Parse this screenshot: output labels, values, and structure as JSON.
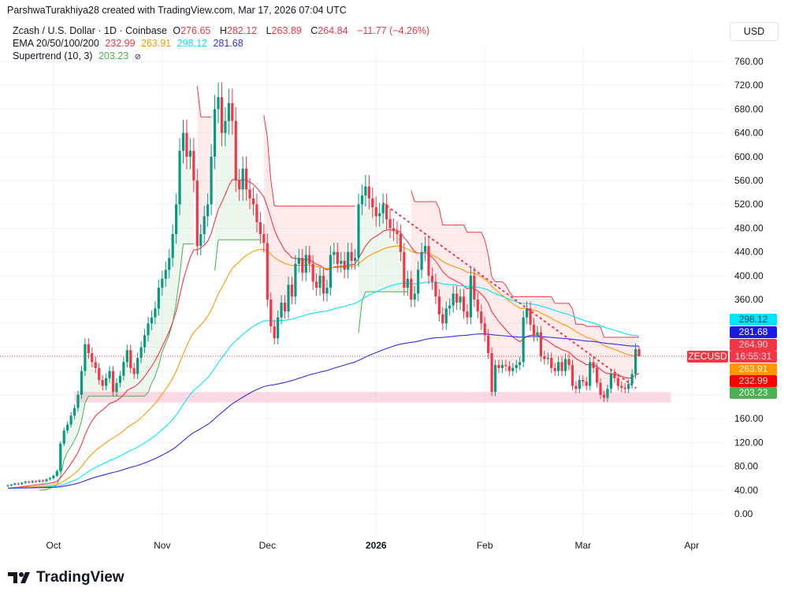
{
  "credit": "ParshwaTurakhiya28 created with TradingView.com, Mar 17, 2026 07:04 UTC",
  "legend": {
    "symbol": "Zcash / U.S. Dollar · 1D · Coinbase",
    "o_label": "O",
    "o": "276.65",
    "h_label": "H",
    "h": "282.12",
    "l_label": "L",
    "l": "263.89",
    "c_label": "C",
    "c": "264.84",
    "change": "−11.77 (−4.26%)",
    "ema_label": "EMA 20/50/100/200",
    "ema20": "232.99",
    "ema50": "263.91",
    "ema100": "298.12",
    "ema200": "281.68",
    "supertrend_label": "Supertrend (10, 3)",
    "supertrend": "203.23",
    "visibility_icon": "eye-off-icon"
  },
  "currency_button": "USD",
  "price_tags": {
    "ema100": "298.12",
    "ema200": "281.68",
    "last_price": "264.90",
    "symbol": "ZECUSD",
    "countdown": "16:55:31",
    "ema50": "263.91",
    "ema20": "232.99",
    "supertrend": "203.23"
  },
  "colors": {
    "up": "#089981",
    "down": "#f23645",
    "ema20": "#f23645",
    "ema50": "#ff9800",
    "ema100": "#00e5ff",
    "ema200": "#2f2fe6",
    "supertrend_up": "#4caf50",
    "supertrend_down": "#f23645",
    "zone": "#f8bbd0"
  },
  "brand": "TradingView",
  "chart_data": {
    "type": "candlestick",
    "symbol": "ZECUSD",
    "interval": "1D",
    "start_date": "2025-09-18",
    "closes": [
      48,
      49,
      51,
      50,
      52,
      54,
      53,
      55,
      54,
      56,
      55,
      58,
      60,
      64,
      72,
      118,
      140,
      150,
      165,
      178,
      200,
      240,
      285,
      270,
      255,
      245,
      225,
      215,
      228,
      240,
      205,
      220,
      232,
      255,
      275,
      245,
      235,
      262,
      280,
      300,
      320,
      330,
      345,
      380,
      395,
      410,
      430,
      470,
      520,
      610,
      640,
      600,
      610,
      560,
      450,
      470,
      500,
      520,
      600,
      680,
      700,
      640,
      660,
      690,
      660,
      560,
      545,
      580,
      545,
      530,
      520,
      490,
      470,
      455,
      360,
      315,
      295,
      330,
      355,
      340,
      385,
      365,
      420,
      430,
      405,
      435,
      420,
      390,
      380,
      400,
      370,
      380,
      435,
      440,
      420,
      425,
      410,
      440,
      425,
      430,
      520,
      535,
      550,
      530,
      515,
      500,
      505,
      520,
      495,
      480,
      475,
      470,
      440,
      380,
      395,
      360,
      370,
      410,
      440,
      450,
      400,
      390,
      365,
      335,
      320,
      345,
      350,
      370,
      355,
      365,
      340,
      330,
      400,
      360,
      340,
      320,
      300,
      270,
      205,
      250,
      245,
      250,
      248,
      240,
      245,
      250,
      255,
      330,
      345,
      318,
      300,
      305,
      265,
      260,
      262,
      245,
      240,
      255,
      240,
      260,
      250,
      215,
      210,
      225,
      222,
      215,
      255,
      245,
      220,
      200,
      195,
      210,
      235,
      228,
      215,
      212,
      210,
      218,
      235,
      276.65,
      264.84
    ],
    "last_candle": {
      "open": 276.65,
      "high": 282.12,
      "low": 263.89,
      "close": 264.84
    },
    "indicators": {
      "ema_periods": [
        20,
        50,
        100,
        200
      ],
      "supertrend": {
        "atr_period": 10,
        "multiplier": 3
      }
    },
    "zone": {
      "from": "2025-10-07",
      "to": "2026-03-26",
      "low": 187,
      "high": 205
    },
    "trendline": {
      "from_date": "2026-01-03",
      "from_value": 522,
      "to_date": "2026-03-16",
      "to_value": 212,
      "style": "dotted"
    },
    "ylim": [
      -20,
      780
    ],
    "y_ticks": [
      "760.00",
      "720.00",
      "680.00",
      "640.00",
      "600.00",
      "560.00",
      "520.00",
      "480.00",
      "440.00",
      "400.00",
      "360.00",
      "160.00",
      "120.00",
      "80.00",
      "40.00",
      "0.00"
    ],
    "x_ticks": [
      {
        "label": "Oct",
        "date": "2025-10-01"
      },
      {
        "label": "Nov",
        "date": "2025-11-01"
      },
      {
        "label": "Dec",
        "date": "2025-12-01"
      },
      {
        "label": "2026",
        "date": "2026-01-01"
      },
      {
        "label": "Feb",
        "date": "2026-02-01"
      },
      {
        "label": "Mar",
        "date": "2026-03-01"
      },
      {
        "label": "Apr",
        "date": "2026-04-01"
      }
    ],
    "grid": true,
    "scale": "linear"
  }
}
